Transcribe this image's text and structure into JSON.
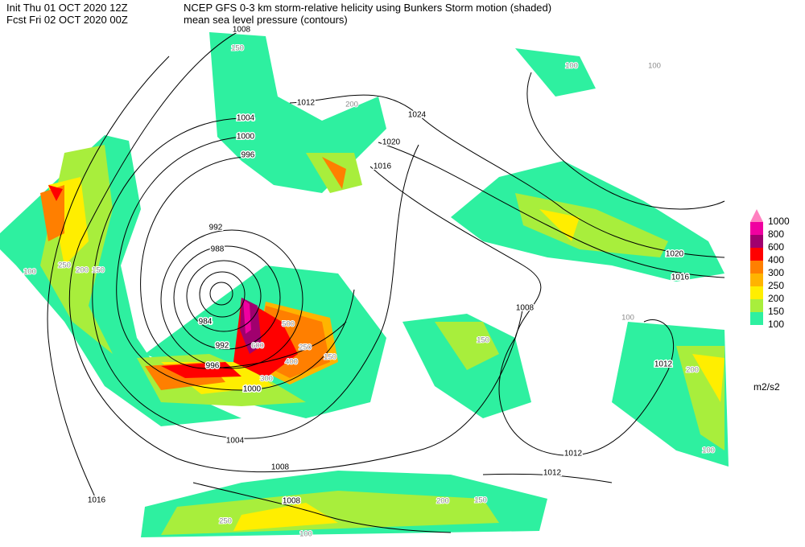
{
  "header": {
    "init": "Init  Thu 01 OCT 2020 12Z",
    "forecast": "Fcst Fri 02 OCT 2020 00Z",
    "title": "NCEP GFS 0-3 km storm-relative helicity using Bunkers Storm motion (shaded)",
    "subtitle": "mean sea level pressure (contours)"
  },
  "legend": {
    "unit": "m2/s2",
    "levels": [
      {
        "value": 1000,
        "color": "#ff80c0"
      },
      {
        "value": 800,
        "color": "#f000a0"
      },
      {
        "value": 600,
        "color": "#a0006e"
      },
      {
        "value": 400,
        "color": "#ff0000"
      },
      {
        "value": 300,
        "color": "#ff7f00"
      },
      {
        "value": 250,
        "color": "#ffb400"
      },
      {
        "value": 200,
        "color": "#ffee00"
      },
      {
        "value": 150,
        "color": "#a8ee3c"
      },
      {
        "value": 100,
        "color": "#2ef0a0"
      }
    ]
  },
  "isobar_labels": [
    1008,
    1012,
    1004,
    1000,
    996,
    992,
    988,
    984,
    992,
    996,
    1000,
    1004,
    1008,
    1008,
    1016,
    1024,
    1020,
    1016,
    1020,
    1016,
    1008,
    1012,
    1012,
    1012
  ],
  "helicity_labels": [
    100,
    150,
    200,
    250,
    200,
    150,
    100,
    600,
    500,
    400,
    300,
    250,
    150,
    100,
    200,
    150,
    100,
    200,
    150,
    100,
    250,
    100
  ]
}
